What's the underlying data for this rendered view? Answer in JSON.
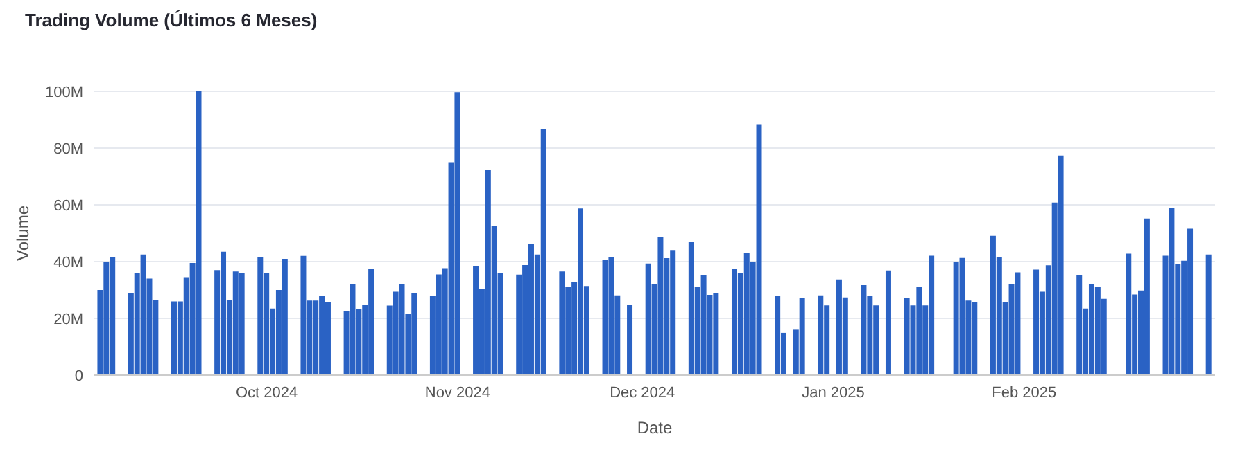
{
  "chart_data": {
    "type": "bar",
    "title": "Trading Volume (Últimos 6 Meses)",
    "xlabel": "Date",
    "ylabel": "Volume",
    "x": [
      "2024-09-04",
      "2024-09-05",
      "2024-09-06",
      "2024-09-09",
      "2024-09-10",
      "2024-09-11",
      "2024-09-12",
      "2024-09-13",
      "2024-09-16",
      "2024-09-17",
      "2024-09-18",
      "2024-09-19",
      "2024-09-20",
      "2024-09-23",
      "2024-09-24",
      "2024-09-25",
      "2024-09-26",
      "2024-09-27",
      "2024-09-30",
      "2024-10-01",
      "2024-10-02",
      "2024-10-03",
      "2024-10-04",
      "2024-10-07",
      "2024-10-08",
      "2024-10-09",
      "2024-10-10",
      "2024-10-11",
      "2024-10-14",
      "2024-10-15",
      "2024-10-16",
      "2024-10-17",
      "2024-10-18",
      "2024-10-21",
      "2024-10-22",
      "2024-10-23",
      "2024-10-24",
      "2024-10-25",
      "2024-10-28",
      "2024-10-29",
      "2024-10-30",
      "2024-10-31",
      "2024-11-01",
      "2024-11-04",
      "2024-11-05",
      "2024-11-06",
      "2024-11-07",
      "2024-11-08",
      "2024-11-11",
      "2024-11-12",
      "2024-11-13",
      "2024-11-14",
      "2024-11-15",
      "2024-11-18",
      "2024-11-19",
      "2024-11-20",
      "2024-11-21",
      "2024-11-22",
      "2024-11-25",
      "2024-11-26",
      "2024-11-27",
      "2024-11-29",
      "2024-12-02",
      "2024-12-03",
      "2024-12-04",
      "2024-12-05",
      "2024-12-06",
      "2024-12-09",
      "2024-12-10",
      "2024-12-11",
      "2024-12-12",
      "2024-12-13",
      "2024-12-16",
      "2024-12-17",
      "2024-12-18",
      "2024-12-19",
      "2024-12-20",
      "2024-12-23",
      "2024-12-24",
      "2024-12-26",
      "2024-12-27",
      "2024-12-30",
      "2024-12-31",
      "2025-01-02",
      "2025-01-03",
      "2025-01-06",
      "2025-01-07",
      "2025-01-08",
      "2025-01-10",
      "2025-01-13",
      "2025-01-14",
      "2025-01-15",
      "2025-01-16",
      "2025-01-17",
      "2025-01-21",
      "2025-01-22",
      "2025-01-23",
      "2025-01-24",
      "2025-01-27",
      "2025-01-28",
      "2025-01-29",
      "2025-01-30",
      "2025-01-31",
      "2025-02-03",
      "2025-02-04",
      "2025-02-05",
      "2025-02-06",
      "2025-02-07",
      "2025-02-10",
      "2025-02-11",
      "2025-02-12",
      "2025-02-13",
      "2025-02-14",
      "2025-02-18",
      "2025-02-19",
      "2025-02-20",
      "2025-02-21",
      "2025-02-24",
      "2025-02-25",
      "2025-02-26",
      "2025-02-27",
      "2025-02-28",
      "2025-03-03"
    ],
    "values": [
      30,
      40,
      41.5,
      29,
      36,
      42.5,
      34,
      26.5,
      26,
      26,
      34.5,
      39.5,
      100,
      37,
      43.5,
      26.5,
      36.5,
      36,
      41.5,
      36,
      23.5,
      30,
      41,
      42,
      26.3,
      26.3,
      27.8,
      25.6,
      22.5,
      32,
      23.3,
      24.8,
      37.4,
      24.5,
      29.4,
      32,
      21.5,
      29,
      28,
      35.5,
      37.7,
      75,
      99.7,
      38.3,
      30.4,
      72.2,
      52.7,
      36,
      35.4,
      38.8,
      46.1,
      42.5,
      86.6,
      36.5,
      31.1,
      32.7,
      58.7,
      31.4,
      40.5,
      41.7,
      28.1,
      24.8,
      39.3,
      32.2,
      48.8,
      41.2,
      44.1,
      46.8,
      31.1,
      35.2,
      28.3,
      28.8,
      37.5,
      35.9,
      43.1,
      39.8,
      88.4,
      27.9,
      14.9,
      16,
      27.3,
      28.1,
      24.6,
      33.7,
      27.4,
      31.7,
      27.9,
      24.6,
      36.9,
      27.1,
      24.6,
      31.1,
      24.6,
      42.1,
      39.8,
      41.3,
      26.3,
      25.6,
      49.1,
      41.5,
      25.8,
      32.1,
      36.2,
      37.2,
      29.4,
      38.7,
      60.8,
      77.4,
      35.2,
      23.5,
      32.2,
      31.2,
      26.9,
      42.8,
      28.4,
      29.8,
      55.2,
      42.1,
      58.8,
      39,
      40.3,
      51.6,
      42.5
    ],
    "color": "#2a62c4",
    "xlim": [
      "2024-09-03",
      "2025-03-04"
    ],
    "xticks": [
      {
        "value": "2024-10-01",
        "label": "Oct 2024"
      },
      {
        "value": "2024-11-01",
        "label": "Nov 2024"
      },
      {
        "value": "2024-12-01",
        "label": "Dec 2024"
      },
      {
        "value": "2025-01-01",
        "label": "Jan 2025"
      },
      {
        "value": "2025-02-01",
        "label": "Feb 2025"
      }
    ],
    "ylim": [
      0,
      100
    ],
    "yticks": [
      0,
      {
        "value": 20,
        "label": "20M"
      },
      {
        "value": 40,
        "label": "40M"
      },
      {
        "value": 60,
        "label": "60M"
      },
      {
        "value": 80,
        "label": "80M"
      },
      {
        "value": 100,
        "label": "100M"
      }
    ],
    "grid": "y"
  }
}
